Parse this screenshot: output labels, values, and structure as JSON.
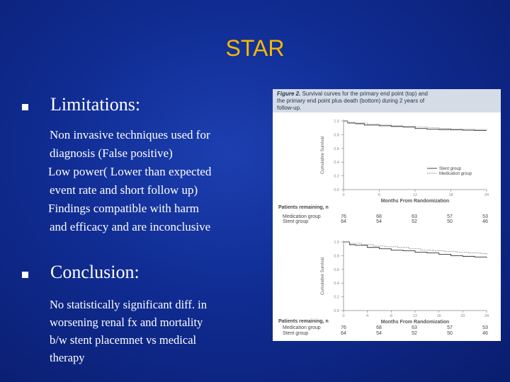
{
  "slide": {
    "title": "STAR",
    "limitations": {
      "heading": "Limitations:",
      "lines": [
        "Non invasive techniques used for",
        "diagnosis (False positive)",
        "Low power( Lower than expected",
        "event rate and short follow up)",
        "Findings compatible with harm",
        "and efficacy and are inconclusive"
      ]
    },
    "conclusion": {
      "heading": "Conclusion:",
      "lines": [
        "No statistically significant diff. in",
        "worsening renal fx and mortality",
        "b/w stent placemnet vs medical",
        "therapy"
      ]
    }
  },
  "figure": {
    "label": "Figure 2.",
    "caption_lines": [
      "Survival curves for the primary end point (top) and",
      "the primary end point plus death (bottom) during 2 years of",
      "follow-up."
    ]
  },
  "chart_data": [
    {
      "type": "line",
      "title": "",
      "ylabel": "Cumulative Survival",
      "xlabel": "Months From Randomization",
      "x_ticks": [
        "0",
        "6",
        "12",
        "18",
        "24"
      ],
      "y_ticks": [
        "0.0",
        "0.2",
        "0.4",
        "0.6",
        "0.8",
        "1.0"
      ],
      "xlim": [
        0,
        24
      ],
      "ylim": [
        0,
        1.0
      ],
      "legend": "right",
      "series": [
        {
          "name": "Stent group",
          "style": "solid",
          "color": "#333333",
          "points": [
            [
              0,
              1.0
            ],
            [
              0.7,
              0.97
            ],
            [
              2,
              0.96
            ],
            [
              3.5,
              0.94
            ],
            [
              6,
              0.93
            ],
            [
              8,
              0.92
            ],
            [
              10,
              0.91
            ],
            [
              12,
              0.89
            ],
            [
              14,
              0.88
            ],
            [
              16,
              0.875
            ],
            [
              18,
              0.87
            ],
            [
              20,
              0.865
            ],
            [
              22,
              0.86
            ],
            [
              24,
              0.86
            ]
          ]
        },
        {
          "name": "Medication group",
          "style": "dotted",
          "color": "#777777",
          "points": [
            [
              0,
              1.0
            ],
            [
              0.7,
              0.98
            ],
            [
              2,
              0.97
            ],
            [
              4,
              0.95
            ],
            [
              6,
              0.94
            ],
            [
              8,
              0.93
            ],
            [
              10,
              0.92
            ],
            [
              12,
              0.91
            ],
            [
              14,
              0.9
            ],
            [
              16,
              0.89
            ],
            [
              18,
              0.885
            ],
            [
              20,
              0.88
            ],
            [
              22,
              0.875
            ],
            [
              24,
              0.87
            ]
          ]
        }
      ],
      "at_risk": {
        "heading": "Patients remaining, n",
        "rows": [
          {
            "group": "Medication group",
            "values": [
              "76",
              "68",
              "63",
              "57",
              "53"
            ]
          },
          {
            "group": "Stent group",
            "values": [
              "64",
              "54",
              "52",
              "50",
              "46"
            ]
          }
        ]
      }
    },
    {
      "type": "line",
      "title": "",
      "ylabel": "Cumulative Survival",
      "xlabel": "Months From Randomization",
      "x_ticks": [
        "0",
        "4",
        "8",
        "12",
        "16",
        "20",
        "24"
      ],
      "y_ticks": [
        "0.0",
        "0.2",
        "0.4",
        "0.6",
        "0.8",
        "1.0"
      ],
      "xlim": [
        0,
        24
      ],
      "ylim": [
        0,
        1.0
      ],
      "series": [
        {
          "name": "Stent group",
          "style": "solid",
          "color": "#333333",
          "points": [
            [
              0,
              1.0
            ],
            [
              1,
              0.96
            ],
            [
              2,
              0.95
            ],
            [
              4,
              0.92
            ],
            [
              6,
              0.9
            ],
            [
              8,
              0.88
            ],
            [
              10,
              0.87
            ],
            [
              12,
              0.85
            ],
            [
              14,
              0.84
            ],
            [
              16,
              0.82
            ],
            [
              18,
              0.8
            ],
            [
              20,
              0.79
            ],
            [
              22,
              0.78
            ],
            [
              24,
              0.77
            ]
          ]
        },
        {
          "name": "Medication group",
          "style": "dotted",
          "color": "#777777",
          "points": [
            [
              0,
              1.0
            ],
            [
              1,
              0.98
            ],
            [
              3,
              0.96
            ],
            [
              5,
              0.94
            ],
            [
              7,
              0.93
            ],
            [
              9,
              0.92
            ],
            [
              11,
              0.9
            ],
            [
              13,
              0.88
            ],
            [
              15,
              0.87
            ],
            [
              17,
              0.86
            ],
            [
              19,
              0.85
            ],
            [
              21,
              0.84
            ],
            [
              23,
              0.83
            ],
            [
              24,
              0.82
            ]
          ]
        }
      ],
      "at_risk": {
        "heading": "Patients remaining, n",
        "rows": [
          {
            "group": "Medication group",
            "values": [
              "76",
              "68",
              "63",
              "57",
              "53"
            ]
          },
          {
            "group": "Stent group",
            "values": [
              "64",
              "54",
              "52",
              "50",
              "46"
            ]
          }
        ]
      }
    }
  ]
}
